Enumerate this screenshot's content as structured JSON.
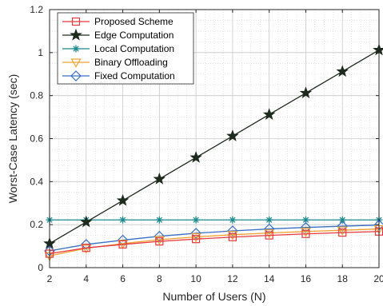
{
  "chart_data": {
    "type": "line",
    "title": "",
    "xlabel": "Number of Users (N)",
    "ylabel": "Worst-Case Latency (sec)",
    "xlim": [
      2,
      20
    ],
    "ylim": [
      0,
      1.2
    ],
    "x": [
      2,
      4,
      6,
      8,
      10,
      12,
      14,
      16,
      18,
      20
    ],
    "xticks": [
      "2",
      "4",
      "6",
      "8",
      "10",
      "12",
      "14",
      "16",
      "18",
      "20"
    ],
    "yticks": [
      "0",
      "0.2",
      "0.4",
      "0.6",
      "0.8",
      "1",
      "1.2"
    ],
    "grid": true,
    "minor_grid": true,
    "legend_position": "top-left",
    "series": [
      {
        "name": "Proposed Scheme",
        "color": "#e8383d",
        "marker": "square",
        "values": [
          0.065,
          0.092,
          0.108,
          0.122,
          0.133,
          0.142,
          0.15,
          0.157,
          0.163,
          0.168
        ]
      },
      {
        "name": "Edge Computation",
        "color": "#1d2a1d",
        "marker": "star",
        "values": [
          0.112,
          0.212,
          0.312,
          0.412,
          0.512,
          0.612,
          0.712,
          0.812,
          0.912,
          1.012
        ]
      },
      {
        "name": "Local Computation",
        "color": "#1a8a8e",
        "marker": "asterisk",
        "values": [
          0.222,
          0.222,
          0.222,
          0.222,
          0.222,
          0.222,
          0.222,
          0.222,
          0.222,
          0.222
        ]
      },
      {
        "name": "Binary Offloading",
        "color": "#f0a030",
        "marker": "triangle-down",
        "values": [
          0.055,
          0.09,
          0.112,
          0.13,
          0.143,
          0.153,
          0.161,
          0.168,
          0.174,
          0.18
        ]
      },
      {
        "name": "Fixed Computation",
        "color": "#3a6fc4",
        "marker": "diamond",
        "values": [
          0.078,
          0.108,
          0.128,
          0.146,
          0.16,
          0.171,
          0.18,
          0.187,
          0.193,
          0.198
        ]
      }
    ]
  }
}
